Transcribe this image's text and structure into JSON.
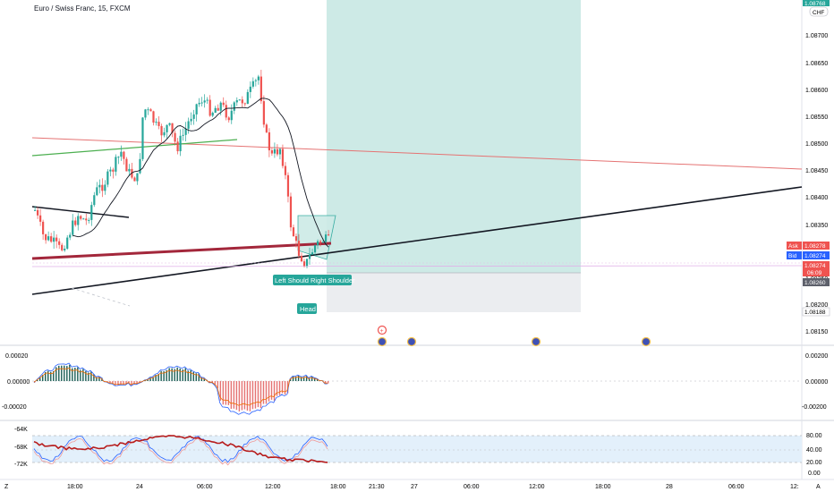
{
  "symbol": "Euro / Swiss Franc, 15, FXCM",
  "currency_badge": "CHF",
  "top_price_badge": "1.08768",
  "price_axis": {
    "labels": [
      "1.08700",
      "1.08650",
      "1.08600",
      "1.08550",
      "1.08500",
      "1.08450",
      "1.08400",
      "1.08350",
      "1.08300",
      "1.08250",
      "1.08200",
      "1.08150"
    ],
    "ask_label": "Ask",
    "ask_value": "1.08278",
    "bid_label": "Bid",
    "bid_value": "1.08274",
    "last_value": "1.08274",
    "countdown": "06:09",
    "stop_value": "1.08260",
    "lower_value": "1.08188"
  },
  "pattern_labels": {
    "left_shoulder": "Left Shoulder",
    "right_shoulder": "Right Shoulder",
    "head": "Head"
  },
  "macd_axis": [
    "0.00020",
    "0.00000",
    "-0.00020"
  ],
  "macd_axis_right": [
    "0.00200",
    "0.00000",
    "-0.00200"
  ],
  "stoch_axis_left": [
    "-64K",
    "-68K",
    "-72K"
  ],
  "stoch_axis_right": [
    "80.00",
    "40.00",
    "20.00",
    "0.00"
  ],
  "time_axis": [
    "18:00",
    "24",
    "06:00",
    "12:00",
    "18:00",
    "21:30",
    "27",
    "06:00",
    "12:00",
    "18:00",
    "28",
    "06:00",
    "12:"
  ],
  "corner_left": "Z",
  "corner_right": "A",
  "colors": {
    "up": "#26a69a",
    "down": "#ef5350",
    "long_zone": "#cdeae6",
    "stop_zone": "#ebedf0",
    "ask": "#ef5350",
    "bid": "#2962ff",
    "stoch_band": "#e3f0fb"
  }
}
